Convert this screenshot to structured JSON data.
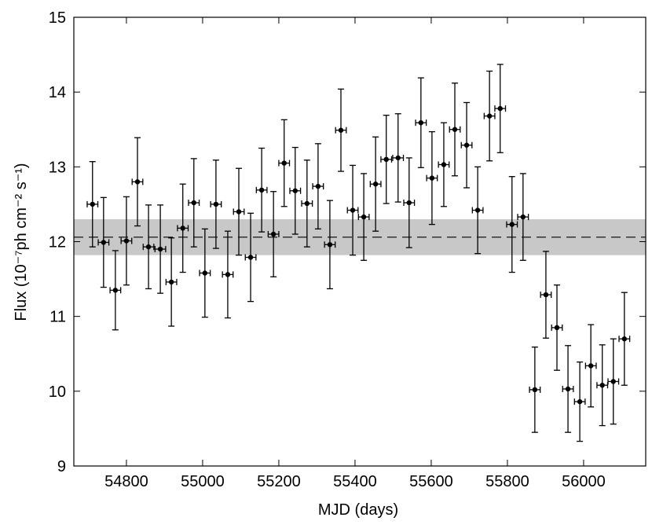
{
  "chart_data": {
    "type": "scatter",
    "xlabel": "MJD (days)",
    "ylabel": "Flux (10⁻⁷ph cm⁻² s⁻¹)",
    "x": [
      54711,
      54740,
      54771,
      54800,
      54829,
      54858,
      54889,
      54918,
      54948,
      54977,
      55006,
      55035,
      55066,
      55095,
      55126,
      55155,
      55186,
      55214,
      55243,
      55274,
      55303,
      55334,
      55363,
      55394,
      55423,
      55454,
      55482,
      55513,
      55542,
      55573,
      55602,
      55633,
      55662,
      55693,
      55722,
      55753,
      55781,
      55812,
      55841,
      55872,
      55901,
      55930,
      55959,
      55990,
      56019,
      56049,
      56078,
      56107
    ],
    "values": [
      12.5,
      11.99,
      11.35,
      12.01,
      12.8,
      11.93,
      11.9,
      11.46,
      12.18,
      12.52,
      11.58,
      12.5,
      11.56,
      12.4,
      11.79,
      12.69,
      12.1,
      13.05,
      12.68,
      12.51,
      12.74,
      11.96,
      13.49,
      12.42,
      12.33,
      12.77,
      13.1,
      13.12,
      12.52,
      13.59,
      12.85,
      13.03,
      13.5,
      13.29,
      12.42,
      13.68,
      13.78,
      12.23,
      12.33,
      10.02,
      11.29,
      10.85,
      10.03,
      9.86,
      10.34,
      10.08,
      10.13,
      10.7
    ],
    "yerr": [
      0.57,
      0.6,
      0.53,
      0.59,
      0.59,
      0.56,
      0.59,
      0.59,
      0.59,
      0.59,
      0.59,
      0.59,
      0.58,
      0.58,
      0.59,
      0.56,
      0.57,
      0.58,
      0.58,
      0.58,
      0.57,
      0.59,
      0.55,
      0.6,
      0.58,
      0.63,
      0.59,
      0.59,
      0.6,
      0.6,
      0.62,
      0.56,
      0.62,
      0.57,
      0.58,
      0.6,
      0.59,
      0.64,
      0.58,
      0.57,
      0.58,
      0.57,
      0.58,
      0.53,
      0.55,
      0.54,
      0.57,
      0.62
    ],
    "xerr": 14,
    "color": "#000000",
    "band": [
      11.82,
      12.3
    ],
    "band_color": "#c8c8c8",
    "mean": 12.06,
    "xlim": [
      54662,
      56163
    ],
    "ylim": [
      9,
      15
    ],
    "xticks": [
      54800,
      55000,
      55200,
      55400,
      55600,
      55800,
      56000
    ],
    "yticks": [
      9,
      10,
      11,
      12,
      13,
      14,
      15
    ]
  }
}
